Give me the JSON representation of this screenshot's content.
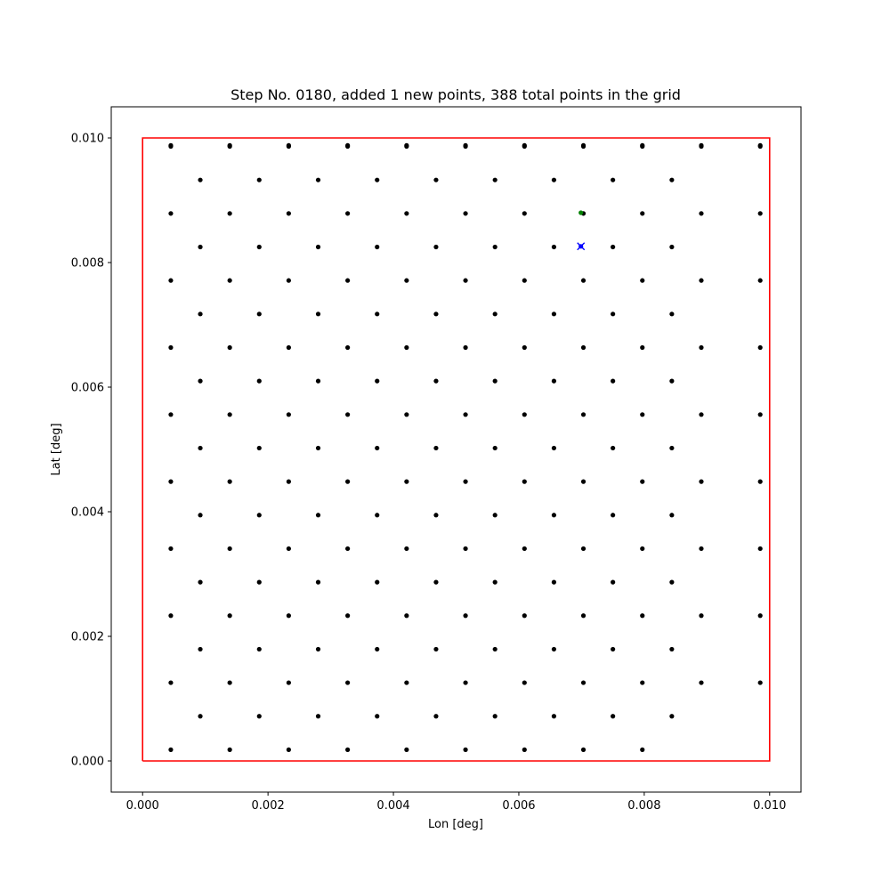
{
  "chart_data": {
    "type": "scatter",
    "title": "Step No. 0180, added 1 new points, 388 total points in the grid",
    "xlabel": "Lon [deg]",
    "ylabel": "Lat [deg]",
    "xlim": [
      -0.0005,
      0.0105
    ],
    "ylim": [
      -0.0005,
      0.0105
    ],
    "grid": false,
    "x_ticks": [
      {
        "value": 0.0,
        "label": "0.000"
      },
      {
        "value": 0.002,
        "label": "0.002"
      },
      {
        "value": 0.004,
        "label": "0.004"
      },
      {
        "value": 0.006,
        "label": "0.006"
      },
      {
        "value": 0.008,
        "label": "0.008"
      },
      {
        "value": 0.01,
        "label": "0.010"
      }
    ],
    "y_ticks": [
      {
        "value": 0.0,
        "label": "0.000"
      },
      {
        "value": 0.002,
        "label": "0.002"
      },
      {
        "value": 0.004,
        "label": "0.004"
      },
      {
        "value": 0.006,
        "label": "0.006"
      },
      {
        "value": 0.008,
        "label": "0.008"
      },
      {
        "value": 0.01,
        "label": "0.010"
      }
    ],
    "boundary": {
      "color": "#ff0000",
      "x": [
        0.0,
        0.01,
        0.01,
        0.0,
        0.0
      ],
      "y": [
        0.0,
        0.0,
        0.01,
        0.01,
        0.0
      ]
    },
    "grid_points": {
      "color": "#000000",
      "description": "hexagonal lattice: even rows at x0_even + k*dx, odd rows at x0_odd + k*dx",
      "x0_even": 0.00045,
      "x0_odd": 0.00092,
      "dx": 0.00094,
      "count_even": 11,
      "count_odd": 11,
      "odd_row_x_max": 0.0093,
      "y0": 0.00018,
      "dy": 0.000538,
      "rows": 19,
      "bottom_row_y": 0.00018,
      "bottom_row_x_max": 0.00885,
      "top_row_y": 0.00988,
      "missing_point": [
        0.00699,
        0.00826
      ]
    },
    "highlight_points": [
      {
        "x": 0.00699,
        "y": 0.0088,
        "color": "#008000",
        "marker": "dot"
      },
      {
        "x": 0.00699,
        "y": 0.00826,
        "color": "#0000ff",
        "marker": "x"
      }
    ]
  }
}
